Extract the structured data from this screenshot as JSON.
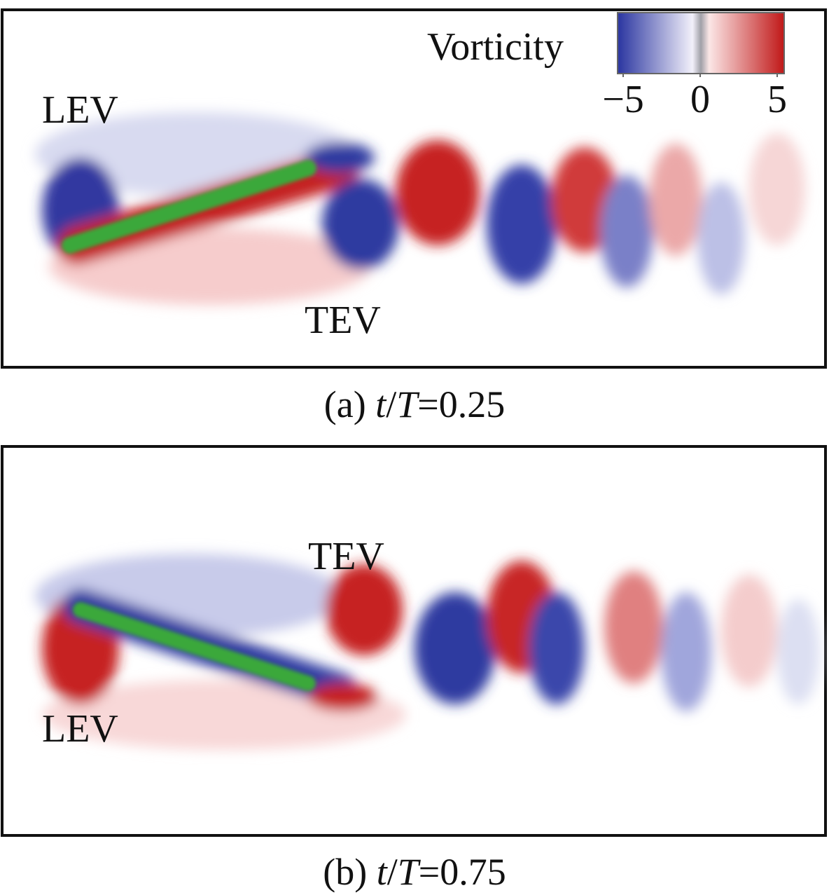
{
  "figure": {
    "colorbar": {
      "label": "Vorticity",
      "ticks": [
        {
          "value": -5,
          "label": "−5"
        },
        0,
        5
      ]
    },
    "panels": [
      {
        "labels": [
          "LEV",
          "TEV"
        ],
        "caption": [
          "(a) ",
          "t",
          "/",
          "T",
          "=0.25"
        ]
      },
      {
        "labels": [
          "TEV",
          "LEV"
        ],
        "caption": [
          "(b) ",
          "t",
          "/",
          "T",
          "=0.75"
        ]
      }
    ]
  }
}
